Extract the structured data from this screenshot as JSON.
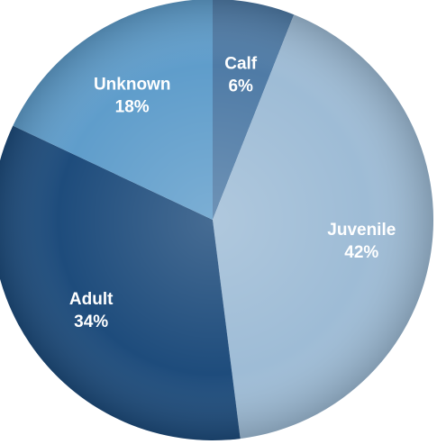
{
  "chart_data": {
    "type": "pie",
    "start_angle_deg": 0,
    "direction": "clockwise",
    "slices": [
      {
        "label": "Calf",
        "value_text": "6%",
        "value": 6,
        "color": "#4f7ba6"
      },
      {
        "label": "Juvenile",
        "value_text": "42%",
        "value": 42,
        "color": "#9ebcd6"
      },
      {
        "label": "Adult",
        "value_text": "34%",
        "value": 34,
        "color": "#1e4c7c"
      },
      {
        "label": "Unknown",
        "value_text": "18%",
        "value": 18,
        "color": "#5f9dcb"
      }
    ],
    "legend": "none"
  }
}
